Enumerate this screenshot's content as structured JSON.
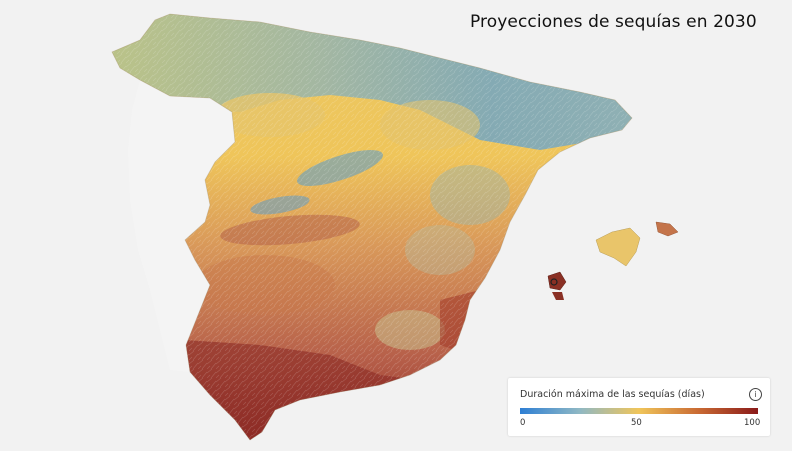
{
  "title": "Proyecciones de sequías en 2030",
  "legend": {
    "title": "Duración máxima de las sequías (días)",
    "info_icon": "info-icon",
    "ticks": [
      "0",
      "50",
      "100"
    ],
    "min": 0,
    "max": 100,
    "colors": [
      "#2e7fd4",
      "#8fb8c4",
      "#f0c55a",
      "#c96a33",
      "#8a1a1a"
    ]
  }
}
